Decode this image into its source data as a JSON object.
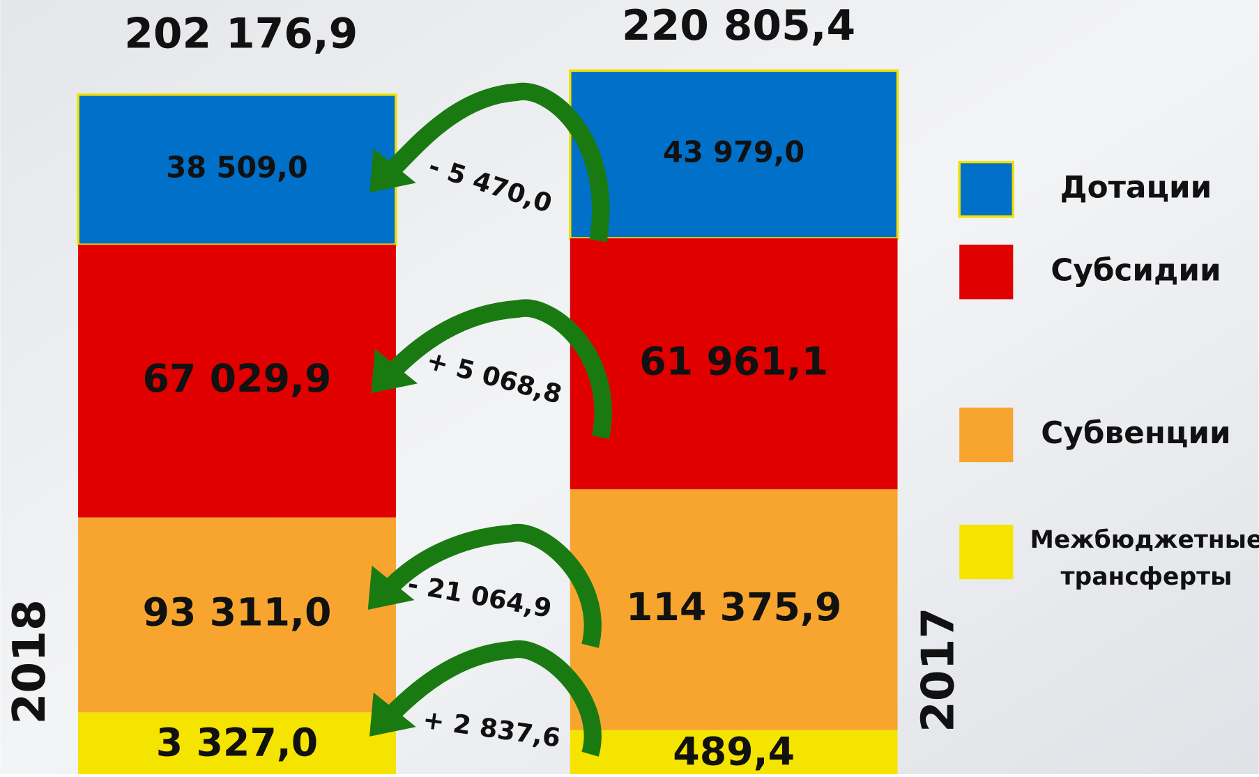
{
  "chart_data": {
    "type": "stacked_bar",
    "categories": [
      "Дотации",
      "Субсидии",
      "Субвенции",
      "Межбюджетные трансферты"
    ],
    "colors": [
      "#0070c8",
      "#e00000",
      "#f7a52e",
      "#f5e400"
    ],
    "series": [
      {
        "name": "2018",
        "total": 202176.9,
        "total_label": "202 176,9",
        "values": [
          38509.0,
          67029.9,
          93311.0,
          3327.0
        ],
        "value_labels": [
          "38 509,0",
          "67 029,9",
          "93 311,0",
          "3 327,0"
        ]
      },
      {
        "name": "2017",
        "total": 220805.4,
        "total_label": "220 805,4",
        "values": [
          43979.0,
          61961.1,
          114375.9,
          489.4
        ],
        "value_labels": [
          "43 979,0",
          "61 961,1",
          "114 375,9",
          "489,4"
        ]
      }
    ],
    "changes": {
      "values": [
        -5470.0,
        5068.8,
        -21064.9,
        2837.6
      ],
      "value_labels": [
        "- 5 470,0",
        "+ 5 068,8",
        "- 21 064,9",
        "+ 2 837,6"
      ],
      "color": "#1a7a12"
    }
  }
}
